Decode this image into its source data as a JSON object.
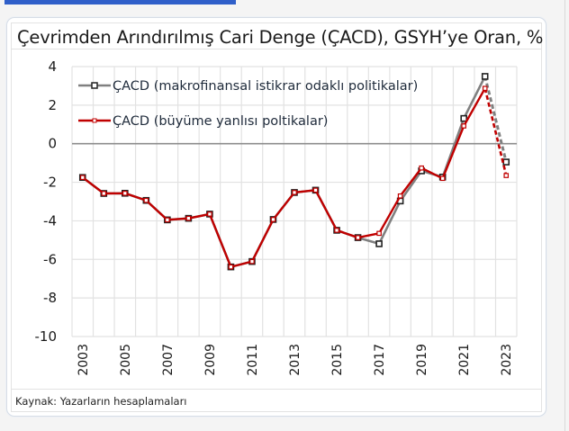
{
  "page": {
    "title": "Çevrimden Arındırılmış Cari Denge (ÇACD), GSYH’ye Oran, %",
    "source": "Kaynak: Yazarların hesaplamaları"
  },
  "colors": {
    "series_gray": "#808080",
    "series_red": "#c00000",
    "grid": "#e2e2e2",
    "zero_line": "#8c8c8c",
    "top_bar": "#2f5fc9"
  },
  "chart_data": {
    "type": "line",
    "title": "Çevrimden Arındırılmış Cari Denge (ÇACD), GSYH’ye Oran, %",
    "xlabel": "",
    "ylabel": "",
    "ylim": [
      -10,
      4
    ],
    "yticks": [
      4,
      2,
      0,
      -2,
      -4,
      -6,
      -8,
      -10
    ],
    "x": [
      "2003",
      "2004",
      "2005",
      "2006",
      "2007",
      "2008",
      "2009",
      "2010",
      "2011",
      "2012",
      "2013",
      "2014",
      "2015",
      "2016",
      "2017",
      "2018",
      "2019",
      "2020",
      "2021",
      "2022",
      "2023"
    ],
    "xtick_labels": [
      "2003",
      "2005",
      "2007",
      "2009",
      "2011",
      "2013",
      "2015",
      "2017",
      "2019",
      "2021",
      "2023"
    ],
    "grid": true,
    "legend_position": "top-left",
    "series": [
      {
        "name": "ÇACD (makrofinansal istikrar odaklı politikalar)",
        "color": "#808080",
        "marker": "square",
        "dashed_last_segment": true,
        "values": [
          -1.75,
          -2.58,
          -2.57,
          -2.94,
          -3.95,
          -3.87,
          -3.65,
          -6.39,
          -6.11,
          -3.93,
          -2.53,
          -2.41,
          -4.49,
          -4.87,
          -5.19,
          -2.97,
          -1.41,
          -1.73,
          1.31,
          3.49,
          -0.95
        ]
      },
      {
        "name": "ÇACD (büyüme yanlısı poltikalar)",
        "color": "#c00000",
        "marker": "diamond",
        "dashed_last_segment": true,
        "values": [
          -1.75,
          -2.58,
          -2.57,
          -2.94,
          -3.95,
          -3.87,
          -3.65,
          -6.39,
          -6.11,
          -3.93,
          -2.53,
          -2.41,
          -4.49,
          -4.87,
          -4.65,
          -2.71,
          -1.26,
          -1.8,
          0.92,
          2.87,
          -1.65
        ]
      }
    ]
  }
}
